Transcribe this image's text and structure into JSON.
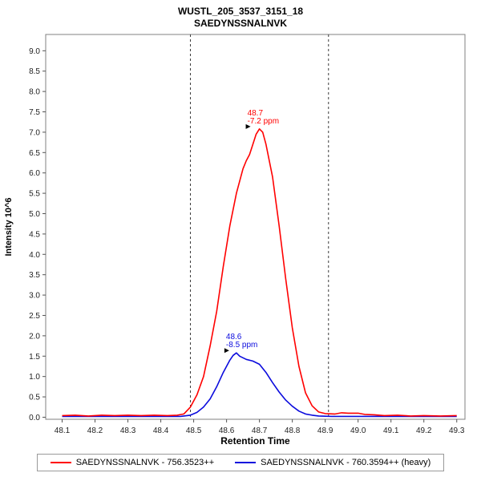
{
  "title": {
    "line1": "WUSTL_205_3537_3151_18",
    "line2": "SAEDYNSSNALNVK"
  },
  "chart_data": {
    "type": "line",
    "title": "WUSTL_205_3537_3151_18",
    "subtitle": "SAEDYNSSNALNVK",
    "xlabel": "Retention Time",
    "ylabel": "Intensity 10^6",
    "xlim": [
      48.05,
      49.325
    ],
    "ylim": [
      -0.05,
      9.4
    ],
    "xticks": [
      "48.1",
      "48.2",
      "48.3",
      "48.4",
      "48.5",
      "48.6",
      "48.7",
      "48.8",
      "48.9",
      "49.0",
      "49.1",
      "49.2",
      "49.3"
    ],
    "yticks": [
      "0.0",
      "0.5",
      "1.0",
      "1.5",
      "2.0",
      "2.5",
      "3.0",
      "3.5",
      "4.0",
      "4.5",
      "5.0",
      "5.5",
      "6.0",
      "6.5",
      "7.0",
      "7.5",
      "8.0",
      "8.5",
      "9.0"
    ],
    "grid": false,
    "legend_position": "bottom",
    "integration_boundaries": [
      48.49,
      48.91
    ],
    "series": [
      {
        "key": "light",
        "name": "SAEDYNSSNALNVK - 756.3523++",
        "color": "#ff0000",
        "points": [
          [
            48.1,
            0.04
          ],
          [
            48.14,
            0.05
          ],
          [
            48.18,
            0.03
          ],
          [
            48.22,
            0.05
          ],
          [
            48.26,
            0.04
          ],
          [
            48.3,
            0.05
          ],
          [
            48.34,
            0.04
          ],
          [
            48.38,
            0.05
          ],
          [
            48.42,
            0.04
          ],
          [
            48.45,
            0.05
          ],
          [
            48.47,
            0.08
          ],
          [
            48.49,
            0.25
          ],
          [
            48.51,
            0.55
          ],
          [
            48.53,
            1.0
          ],
          [
            48.55,
            1.75
          ],
          [
            48.57,
            2.6
          ],
          [
            48.59,
            3.7
          ],
          [
            48.61,
            4.7
          ],
          [
            48.63,
            5.5
          ],
          [
            48.65,
            6.1
          ],
          [
            48.66,
            6.3
          ],
          [
            48.67,
            6.45
          ],
          [
            48.68,
            6.7
          ],
          [
            48.69,
            6.95
          ],
          [
            48.7,
            7.08
          ],
          [
            48.71,
            7.0
          ],
          [
            48.72,
            6.7
          ],
          [
            48.74,
            5.9
          ],
          [
            48.76,
            4.7
          ],
          [
            48.78,
            3.4
          ],
          [
            48.8,
            2.2
          ],
          [
            48.82,
            1.25
          ],
          [
            48.84,
            0.6
          ],
          [
            48.86,
            0.28
          ],
          [
            48.88,
            0.13
          ],
          [
            48.9,
            0.09
          ],
          [
            48.93,
            0.08
          ],
          [
            48.95,
            0.11
          ],
          [
            48.97,
            0.1
          ],
          [
            49.0,
            0.1
          ],
          [
            49.02,
            0.07
          ],
          [
            49.05,
            0.06
          ],
          [
            49.08,
            0.04
          ],
          [
            49.12,
            0.05
          ],
          [
            49.16,
            0.03
          ],
          [
            49.2,
            0.04
          ],
          [
            49.25,
            0.03
          ],
          [
            49.3,
            0.04
          ]
        ]
      },
      {
        "key": "heavy",
        "name": "SAEDYNSSNALNVK - 760.3594++ (heavy)",
        "color": "#0b0bdd",
        "points": [
          [
            48.1,
            0.02
          ],
          [
            48.2,
            0.02
          ],
          [
            48.3,
            0.02
          ],
          [
            48.4,
            0.02
          ],
          [
            48.46,
            0.02
          ],
          [
            48.49,
            0.05
          ],
          [
            48.51,
            0.12
          ],
          [
            48.53,
            0.25
          ],
          [
            48.55,
            0.45
          ],
          [
            48.57,
            0.75
          ],
          [
            48.59,
            1.1
          ],
          [
            48.61,
            1.4
          ],
          [
            48.62,
            1.52
          ],
          [
            48.63,
            1.58
          ],
          [
            48.64,
            1.5
          ],
          [
            48.66,
            1.42
          ],
          [
            48.68,
            1.38
          ],
          [
            48.7,
            1.3
          ],
          [
            48.72,
            1.1
          ],
          [
            48.74,
            0.85
          ],
          [
            48.76,
            0.62
          ],
          [
            48.78,
            0.42
          ],
          [
            48.8,
            0.27
          ],
          [
            48.82,
            0.15
          ],
          [
            48.84,
            0.08
          ],
          [
            48.86,
            0.05
          ],
          [
            48.88,
            0.03
          ],
          [
            48.92,
            0.02
          ],
          [
            49.0,
            0.02
          ],
          [
            49.1,
            0.02
          ],
          [
            49.2,
            0.02
          ],
          [
            49.3,
            0.02
          ]
        ]
      }
    ],
    "annotations": [
      {
        "series": "light",
        "lines": [
          "48.7",
          "-7.2 ppm"
        ],
        "x": 48.695,
        "y": 7.08,
        "color": "#ff0000"
      },
      {
        "series": "heavy",
        "lines": [
          "48.6",
          "-8.5 ppm"
        ],
        "x": 48.63,
        "y": 1.58,
        "color": "#0b0bdd"
      }
    ]
  },
  "legend": {
    "items": [
      {
        "label": "SAEDYNSSNALNVK - 756.3523++",
        "color": "#ff0000"
      },
      {
        "label": "SAEDYNSSNALNVK - 760.3594++ (heavy)",
        "color": "#0b0bdd"
      }
    ]
  }
}
